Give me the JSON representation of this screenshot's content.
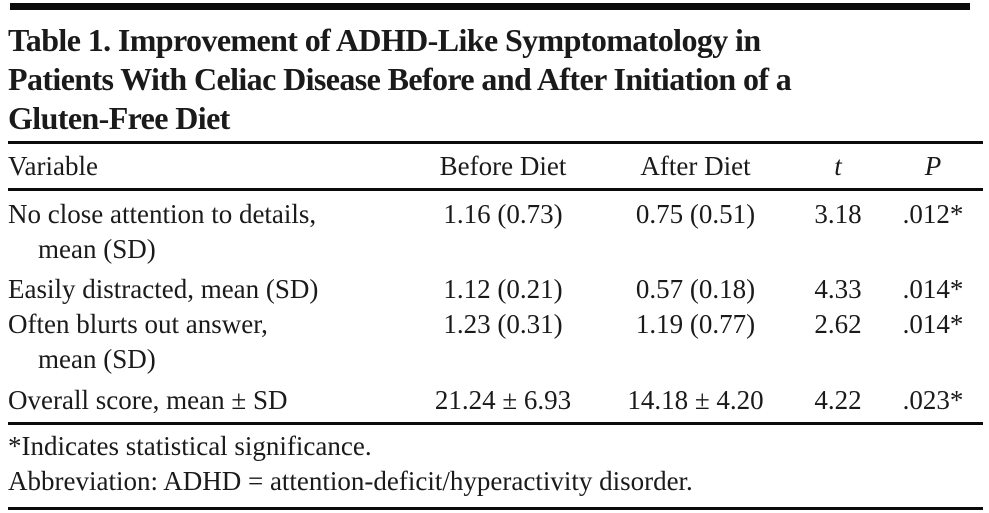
{
  "colors": {
    "background": "#ffffff",
    "text": "#1a1a1a",
    "rule": "#0b0b0b"
  },
  "title": {
    "lines": [
      "Table 1. Improvement of ADHD-Like Symptomatology in",
      "Patients With Celiac Disease Before and After Initiation of a",
      "Gluten-Free Diet"
    ]
  },
  "table": {
    "columns": [
      "Variable",
      "Before Diet",
      "After Diet",
      "t",
      "P"
    ],
    "rows": [
      {
        "variable_line1": "No close attention to details,",
        "variable_line2": "mean (SD)",
        "before": "1.16 (0.73)",
        "after": "0.75 (0.51)",
        "t": "3.18",
        "p": ".012*"
      },
      {
        "variable_line1": "Easily distracted, mean (SD)",
        "variable_line2": "",
        "before": "1.12 (0.21)",
        "after": "0.57 (0.18)",
        "t": "4.33",
        "p": ".014*"
      },
      {
        "variable_line1": "Often blurts out answer,",
        "variable_line2": "mean (SD)",
        "before": "1.23 (0.31)",
        "after": "1.19 (0.77)",
        "t": "2.62",
        "p": ".014*"
      },
      {
        "variable_line1": "Overall score, mean ± SD",
        "variable_line2": "",
        "before": "21.24 ± 6.93",
        "after": "14.18 ± 4.20",
        "t": "4.22",
        "p": ".023*"
      }
    ],
    "footnotes": [
      "*Indicates statistical significance.",
      "Abbreviation: ADHD = attention-deficit/hyperactivity disorder."
    ]
  }
}
